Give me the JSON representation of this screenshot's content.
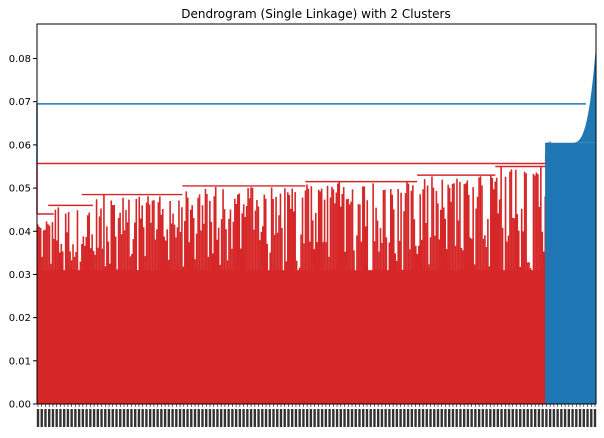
{
  "chart_data": {
    "type": "dendrogram",
    "title": "Dendrogram (Single Linkage) with 2 Clusters",
    "xlabel": "",
    "ylabel": "",
    "ylim": [
      0,
      0.088
    ],
    "y_ticks": [
      "0.00",
      "0.01",
      "0.02",
      "0.03",
      "0.04",
      "0.05",
      "0.06",
      "0.07",
      "0.08"
    ],
    "y_tick_values": [
      0,
      0.01,
      0.02,
      0.03,
      0.04,
      0.05,
      0.06,
      0.07,
      0.08
    ],
    "x_tick_labels_note": "dense, overlapping leaf labels (illegible)",
    "grid": false,
    "legend": "none",
    "n_clusters": 2,
    "clusters": [
      {
        "color": "#d62728",
        "leaf_fraction": 0.91,
        "merge_height": 0.0557,
        "baseline_heights": [
          0.037,
          0.036,
          0.034,
          0.032,
          0.031,
          0.03,
          0.028,
          0.026,
          0.023,
          0.031
        ],
        "sub_merges": [
          {
            "from": 0.0,
            "to": 0.03,
            "height": 0.044
          },
          {
            "from": 0.02,
            "to": 0.1,
            "height": 0.046
          },
          {
            "from": 0.08,
            "to": 0.26,
            "height": 0.0485
          },
          {
            "from": 0.26,
            "to": 0.48,
            "height": 0.0505
          },
          {
            "from": 0.48,
            "to": 0.68,
            "height": 0.0515
          },
          {
            "from": 0.68,
            "to": 0.82,
            "height": 0.053
          },
          {
            "from": 0.82,
            "to": 0.92,
            "height": 0.055
          },
          {
            "from": 0.92,
            "to": 1.0,
            "height": 0.0585
          }
        ]
      },
      {
        "color": "#1f77b4",
        "leaf_fraction": 0.09,
        "merge_height": 0.0605,
        "max_height": 0.083
      }
    ],
    "root_merge": {
      "height": 0.0695,
      "color": "#1f77b4"
    }
  }
}
